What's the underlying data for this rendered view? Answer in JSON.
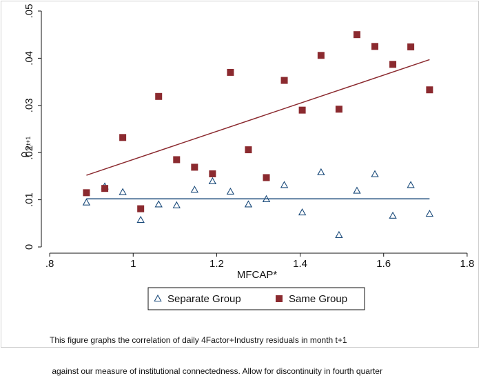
{
  "chart_data": {
    "type": "scatter",
    "xlabel": "MFCAP*",
    "ylabel": "ρ",
    "ylabel_sub": "ij,t+1",
    "xlim": [
      0.78,
      1.82
    ],
    "ylim": [
      0,
      0.05
    ],
    "xticks": [
      0.8,
      1.0,
      1.2,
      1.4,
      1.6,
      1.8
    ],
    "xtick_labels": [
      ".8",
      "1",
      "1.2",
      "1.4",
      "1.6",
      "1.8"
    ],
    "yticks": [
      0,
      0.01,
      0.02,
      0.03,
      0.04,
      0.05
    ],
    "ytick_labels": [
      "0",
      ".01",
      ".02",
      ".03",
      ".04",
      ".05"
    ],
    "grid": false,
    "legend_position": "bottom",
    "series": [
      {
        "name": "Separate Group",
        "marker": "hollow-triangle",
        "color": "#1a4a7a",
        "points": [
          [
            0.888,
            0.0094
          ],
          [
            0.932,
            0.0128
          ],
          [
            0.975,
            0.0116
          ],
          [
            1.018,
            0.0057
          ],
          [
            1.061,
            0.009
          ],
          [
            1.104,
            0.0088
          ],
          [
            1.147,
            0.0121
          ],
          [
            1.19,
            0.0139
          ],
          [
            1.233,
            0.0117
          ],
          [
            1.276,
            0.009
          ],
          [
            1.319,
            0.0101
          ],
          [
            1.362,
            0.0131
          ],
          [
            1.405,
            0.0073
          ],
          [
            1.45,
            0.0158
          ],
          [
            1.493,
            0.0025
          ],
          [
            1.536,
            0.0119
          ],
          [
            1.579,
            0.0154
          ],
          [
            1.622,
            0.0066
          ],
          [
            1.665,
            0.0131
          ],
          [
            1.71,
            0.007
          ]
        ],
        "fit": [
          [
            0.888,
            0.0102
          ],
          [
            1.71,
            0.0102
          ]
        ]
      },
      {
        "name": "Same Group",
        "marker": "filled-square",
        "color": "#8b2a2f",
        "points": [
          [
            0.888,
            0.0115
          ],
          [
            0.932,
            0.0124
          ],
          [
            0.975,
            0.0232
          ],
          [
            1.018,
            0.0081
          ],
          [
            1.061,
            0.0319
          ],
          [
            1.104,
            0.0185
          ],
          [
            1.147,
            0.0169
          ],
          [
            1.19,
            0.0155
          ],
          [
            1.233,
            0.037
          ],
          [
            1.276,
            0.0206
          ],
          [
            1.319,
            0.0147
          ],
          [
            1.362,
            0.0353
          ],
          [
            1.405,
            0.029
          ],
          [
            1.45,
            0.0406
          ],
          [
            1.493,
            0.0292
          ],
          [
            1.536,
            0.045
          ],
          [
            1.579,
            0.0425
          ],
          [
            1.622,
            0.0387
          ],
          [
            1.665,
            0.0424
          ],
          [
            1.71,
            0.0333
          ]
        ],
        "fit": [
          [
            0.888,
            0.0152
          ],
          [
            1.71,
            0.0397
          ]
        ]
      }
    ],
    "caption_lines": [
      "This figure graphs the correlation of daily 4Factor+Industry residuals in month t+1",
      " against our measure of institutional connectedness. Allow for discontinuity in fourth quarter"
    ]
  }
}
